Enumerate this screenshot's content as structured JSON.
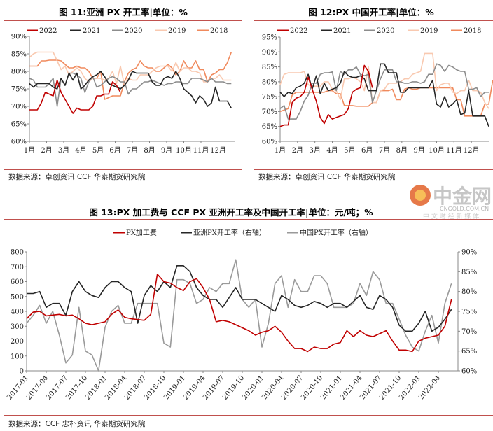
{
  "chart_data": [
    {
      "type": "line",
      "title": "图 11:亚洲 PX 开工率|单位：%",
      "source": "数据来源：卓创资讯  CCF  华泰期货研究院",
      "ylabel": "%",
      "ylim": [
        60,
        90
      ],
      "yticks": [
        "60%",
        "65%",
        "70%",
        "75%",
        "80%",
        "85%",
        "90%"
      ],
      "xticks": [
        "1月",
        "2月",
        "3月",
        "4月",
        "5月",
        "6月",
        "7月",
        "8月",
        "9月",
        "10月",
        "11月",
        "12月"
      ],
      "x_unit": "week of year",
      "series": [
        {
          "name": "2022",
          "color": "#c00000",
          "values": [
            69,
            69,
            69,
            71,
            74,
            73.5,
            73,
            77.5,
            74,
            72,
            70,
            68,
            69.5,
            69,
            69,
            69,
            70,
            73,
            73,
            73.5,
            73.5,
            77,
            76,
            74
          ]
        },
        {
          "name": "2021",
          "color": "#262626",
          "values": [
            76.5,
            75.5,
            76.5,
            76.5,
            76.5,
            76.5,
            75.5,
            75,
            78,
            76,
            79.5,
            77.5,
            79.5,
            75,
            76,
            77.5,
            78.5,
            79,
            80,
            78.5,
            76.5,
            76,
            75.5,
            75,
            76,
            77.5,
            80,
            79.5,
            79.5,
            79.5,
            79.5,
            77,
            76,
            76,
            78,
            78.5,
            78,
            80,
            78,
            75,
            74,
            73,
            71,
            73,
            72,
            70,
            71,
            75.5,
            71.5,
            71.5,
            71.5,
            69.5
          ]
        },
        {
          "name": "2020",
          "color": "#8c8c8c",
          "values": [
            78,
            77.5,
            75.5,
            75.5,
            75.5,
            76.5,
            78,
            70,
            78,
            76,
            79.5,
            79.5,
            79,
            78,
            74,
            77,
            78.5,
            75.5,
            76,
            77,
            78,
            78.5,
            78,
            77,
            77,
            73.5,
            75,
            75,
            76,
            77,
            77,
            77.5,
            77,
            76.5,
            76,
            76.5,
            76.5,
            77,
            77,
            76.5,
            76.5,
            78,
            78,
            78,
            77.5,
            77,
            78,
            77,
            77,
            77,
            76.5,
            76.5
          ]
        },
        {
          "name": "2019",
          "color": "#f9c9b0",
          "values": [
            84,
            85,
            85.5,
            85.5,
            85.5,
            85.5,
            85.5,
            83,
            80.5,
            81.5,
            79,
            80,
            81,
            80,
            78,
            77,
            78,
            78,
            78,
            77.5,
            78,
            80,
            76.5,
            81.5,
            76,
            78,
            77.5,
            77.5,
            79,
            79,
            79,
            80,
            81,
            81.5,
            81.5,
            81.5,
            80,
            82.5,
            80,
            81,
            81,
            80,
            80,
            79.5,
            77,
            77,
            78,
            78,
            79,
            77.5,
            77.5,
            77.5
          ]
        },
        {
          "name": "2018",
          "color": "#f08a5d",
          "values": [
            81.5,
            81.5,
            81.5,
            83,
            83,
            83.2,
            83.2,
            83.2,
            83,
            82,
            81,
            81,
            81.5,
            81,
            81,
            80,
            78,
            78,
            80,
            72,
            72.5,
            73,
            73,
            73,
            77,
            79.5,
            80.5,
            81,
            83,
            81.5,
            81,
            81,
            80,
            80,
            81,
            82,
            81,
            79,
            80,
            83,
            81,
            81,
            83,
            80.5,
            80.5,
            77,
            79,
            79.5,
            80.5,
            80.5,
            82.5,
            85.5
          ]
        }
      ]
    },
    {
      "type": "line",
      "title": "图 12:PX 中国开工率|单位：%",
      "source": "数据来源：卓创资讯  CCF  华泰期货研究院",
      "ylabel": "%",
      "ylim": [
        60,
        95
      ],
      "yticks": [
        "60%",
        "65%",
        "70%",
        "75%",
        "80%",
        "85%",
        "90%",
        "95%"
      ],
      "xticks": [
        "1月",
        "2月",
        "3月",
        "4月",
        "5月",
        "6月",
        "7月",
        "8月",
        "9月",
        "10月",
        "11月",
        "12月"
      ],
      "x_unit": "week of year",
      "series": [
        {
          "name": "2022",
          "color": "#c00000",
          "values": [
            65,
            65.5,
            65.5,
            73,
            74.5,
            75,
            76.5,
            81.5,
            77.5,
            73.5,
            68,
            66,
            69,
            67.5,
            68,
            68.5,
            69,
            71,
            76.5,
            77.5,
            78,
            85.5,
            83.5,
            78
          ]
        },
        {
          "name": "2021",
          "color": "#262626",
          "values": [
            76.5,
            75,
            76.5,
            76,
            78,
            78.5,
            79.5,
            82.5,
            77.5,
            82,
            76,
            79.5,
            77,
            77.5,
            78,
            79.5,
            83.5,
            82,
            81.5,
            81.5,
            82,
            81,
            77,
            77,
            77,
            86,
            86,
            83,
            83,
            83,
            76.5,
            76.5,
            78,
            78,
            78,
            78,
            78,
            78,
            80.5,
            72.5,
            71.5,
            75,
            71.5,
            72.5,
            74,
            69,
            69.5,
            77,
            68.5,
            68.5,
            68.5,
            68.5,
            65
          ]
        },
        {
          "name": "2020",
          "color": "#8c8c8c",
          "values": [
            71,
            72,
            67.5,
            67.5,
            67.5,
            70,
            73.5,
            75.5,
            79.5,
            79.5,
            82.5,
            83,
            83,
            83.3,
            77,
            83.5,
            82.5,
            84,
            84,
            85,
            82.5,
            82,
            82.5,
            73,
            77,
            81,
            84,
            84,
            84,
            80,
            80,
            79.5,
            79.5,
            80,
            80,
            79.5,
            80,
            82.5,
            82.5,
            86,
            85.5,
            83.5,
            85.5,
            85,
            84,
            83.5,
            83.5,
            77.5,
            77.5,
            78,
            75,
            76.5,
            76.5
          ]
        },
        {
          "name": "2019",
          "color": "#f9c9b0",
          "values": [
            79,
            82.5,
            83,
            83,
            83,
            83,
            83.5,
            79,
            78.5,
            78.5,
            78.5,
            80,
            80,
            77.5,
            77,
            74,
            81,
            81,
            81.5,
            81,
            80,
            77,
            85,
            73,
            73,
            77,
            77.5,
            79.5,
            79.5,
            79.5,
            80,
            81,
            81,
            82.5,
            83,
            83.5,
            89.5,
            89.5,
            89.5,
            77,
            79,
            79.5,
            79.5,
            76.5,
            76,
            77,
            77,
            80.5,
            77,
            77,
            76.5,
            73,
            71
          ]
        },
        {
          "name": "2018",
          "color": "#f08a5d",
          "values": [
            70,
            70.5,
            71,
            75.5,
            76.5,
            76.5,
            76.5,
            76.5,
            76.5,
            76.5,
            76.5,
            76.5,
            77,
            77,
            76,
            76,
            72,
            72,
            72,
            71.8,
            71.8,
            71.8,
            71.8,
            73,
            73,
            77,
            77,
            77,
            77.5,
            74,
            74,
            77.5,
            78,
            77.5,
            77.5,
            78,
            78,
            78,
            78,
            78,
            78,
            78,
            78,
            78,
            74,
            74,
            68.5,
            68.5,
            68.5,
            68.5,
            68.5,
            72.5,
            72.5,
            80.5
          ]
        }
      ]
    },
    {
      "type": "line",
      "title": "图 13:PX 加工费与 CCF PX 亚洲开工率及中国开工率|单位：元/吨；%",
      "source": "数据来源：CCF  忠朴资讯  华泰期货研究院",
      "ylim": [
        0,
        800
      ],
      "y2lim": [
        60,
        90
      ],
      "yticks": [
        "0",
        "100",
        "200",
        "300",
        "400",
        "500",
        "600",
        "700",
        "800"
      ],
      "y2ticks": [
        "60%",
        "65%",
        "70%",
        "75%",
        "80%",
        "85%",
        "90%"
      ],
      "xticks": [
        "2017-01",
        "2017-04",
        "2017-07",
        "2017-10",
        "2018-01",
        "2018-04",
        "2018-07",
        "2018-10",
        "2019-01",
        "2019-04",
        "2019-07",
        "2019-10",
        "2020-01",
        "2020-04",
        "2020-07",
        "2020-10",
        "2021-01",
        "2021-04",
        "2021-07",
        "2021-10",
        "2022-01",
        "2022-04"
      ],
      "x_unit": "month from 2017-01",
      "series": [
        {
          "name": "PX加工费",
          "axis": "left",
          "color": "#c00000",
          "values": [
            350,
            395,
            400,
            370,
            375,
            380,
            370,
            375,
            350,
            320,
            310,
            320,
            330,
            380,
            410,
            360,
            350,
            345,
            340,
            380,
            650,
            600,
            590,
            560,
            540,
            600,
            620,
            560,
            480,
            330,
            340,
            330,
            310,
            290,
            270,
            240,
            260,
            270,
            300,
            260,
            200,
            150,
            150,
            130,
            160,
            150,
            150,
            180,
            190,
            270,
            230,
            270,
            240,
            230,
            250,
            270,
            200,
            140,
            140,
            130,
            200,
            220,
            230,
            240,
            300,
            480
          ]
        },
        {
          "name": "亚洲PX开工率（右轴）",
          "axis": "right",
          "color": "#262626",
          "values": [
            79.5,
            79.5,
            80,
            76,
            77,
            77,
            74,
            80,
            82.5,
            80,
            79,
            78.5,
            81,
            82.5,
            82.5,
            81,
            80,
            72,
            79,
            81.5,
            80,
            82.5,
            81,
            86.5,
            86.5,
            85,
            81,
            79,
            78,
            78,
            76,
            78.5,
            81,
            78,
            78,
            78,
            77,
            76,
            75,
            79,
            78,
            76.5,
            76,
            76.5,
            77.5,
            77,
            76,
            77,
            77,
            76,
            77.5,
            79,
            76,
            75.5,
            79,
            78,
            76,
            71.5,
            70,
            70,
            72,
            75,
            70,
            71,
            73,
            75.5
          ]
        },
        {
          "name": "中国PX开工率（右轴）",
          "axis": "right",
          "color": "#9a9a9a",
          "values": [
            72,
            74,
            76.5,
            72,
            75,
            69,
            62,
            64,
            76,
            65,
            64,
            60,
            71,
            75,
            76.5,
            72,
            72,
            77,
            77,
            77,
            77,
            67,
            66,
            83,
            83,
            82,
            77,
            78,
            81,
            80,
            82,
            82,
            88,
            78,
            76,
            78,
            66,
            72,
            82,
            84,
            76,
            83,
            80,
            80,
            84,
            84,
            82,
            76,
            76,
            76,
            77,
            82,
            79,
            85,
            83,
            77,
            77,
            73,
            69,
            66,
            65,
            70,
            74,
            67,
            77,
            82
          ]
        }
      ]
    }
  ],
  "watermark": {
    "brand": "中金网",
    "domain": "CNGOLD.COM.CN",
    "tagline": "中 文 财 经 新 媒 体"
  }
}
